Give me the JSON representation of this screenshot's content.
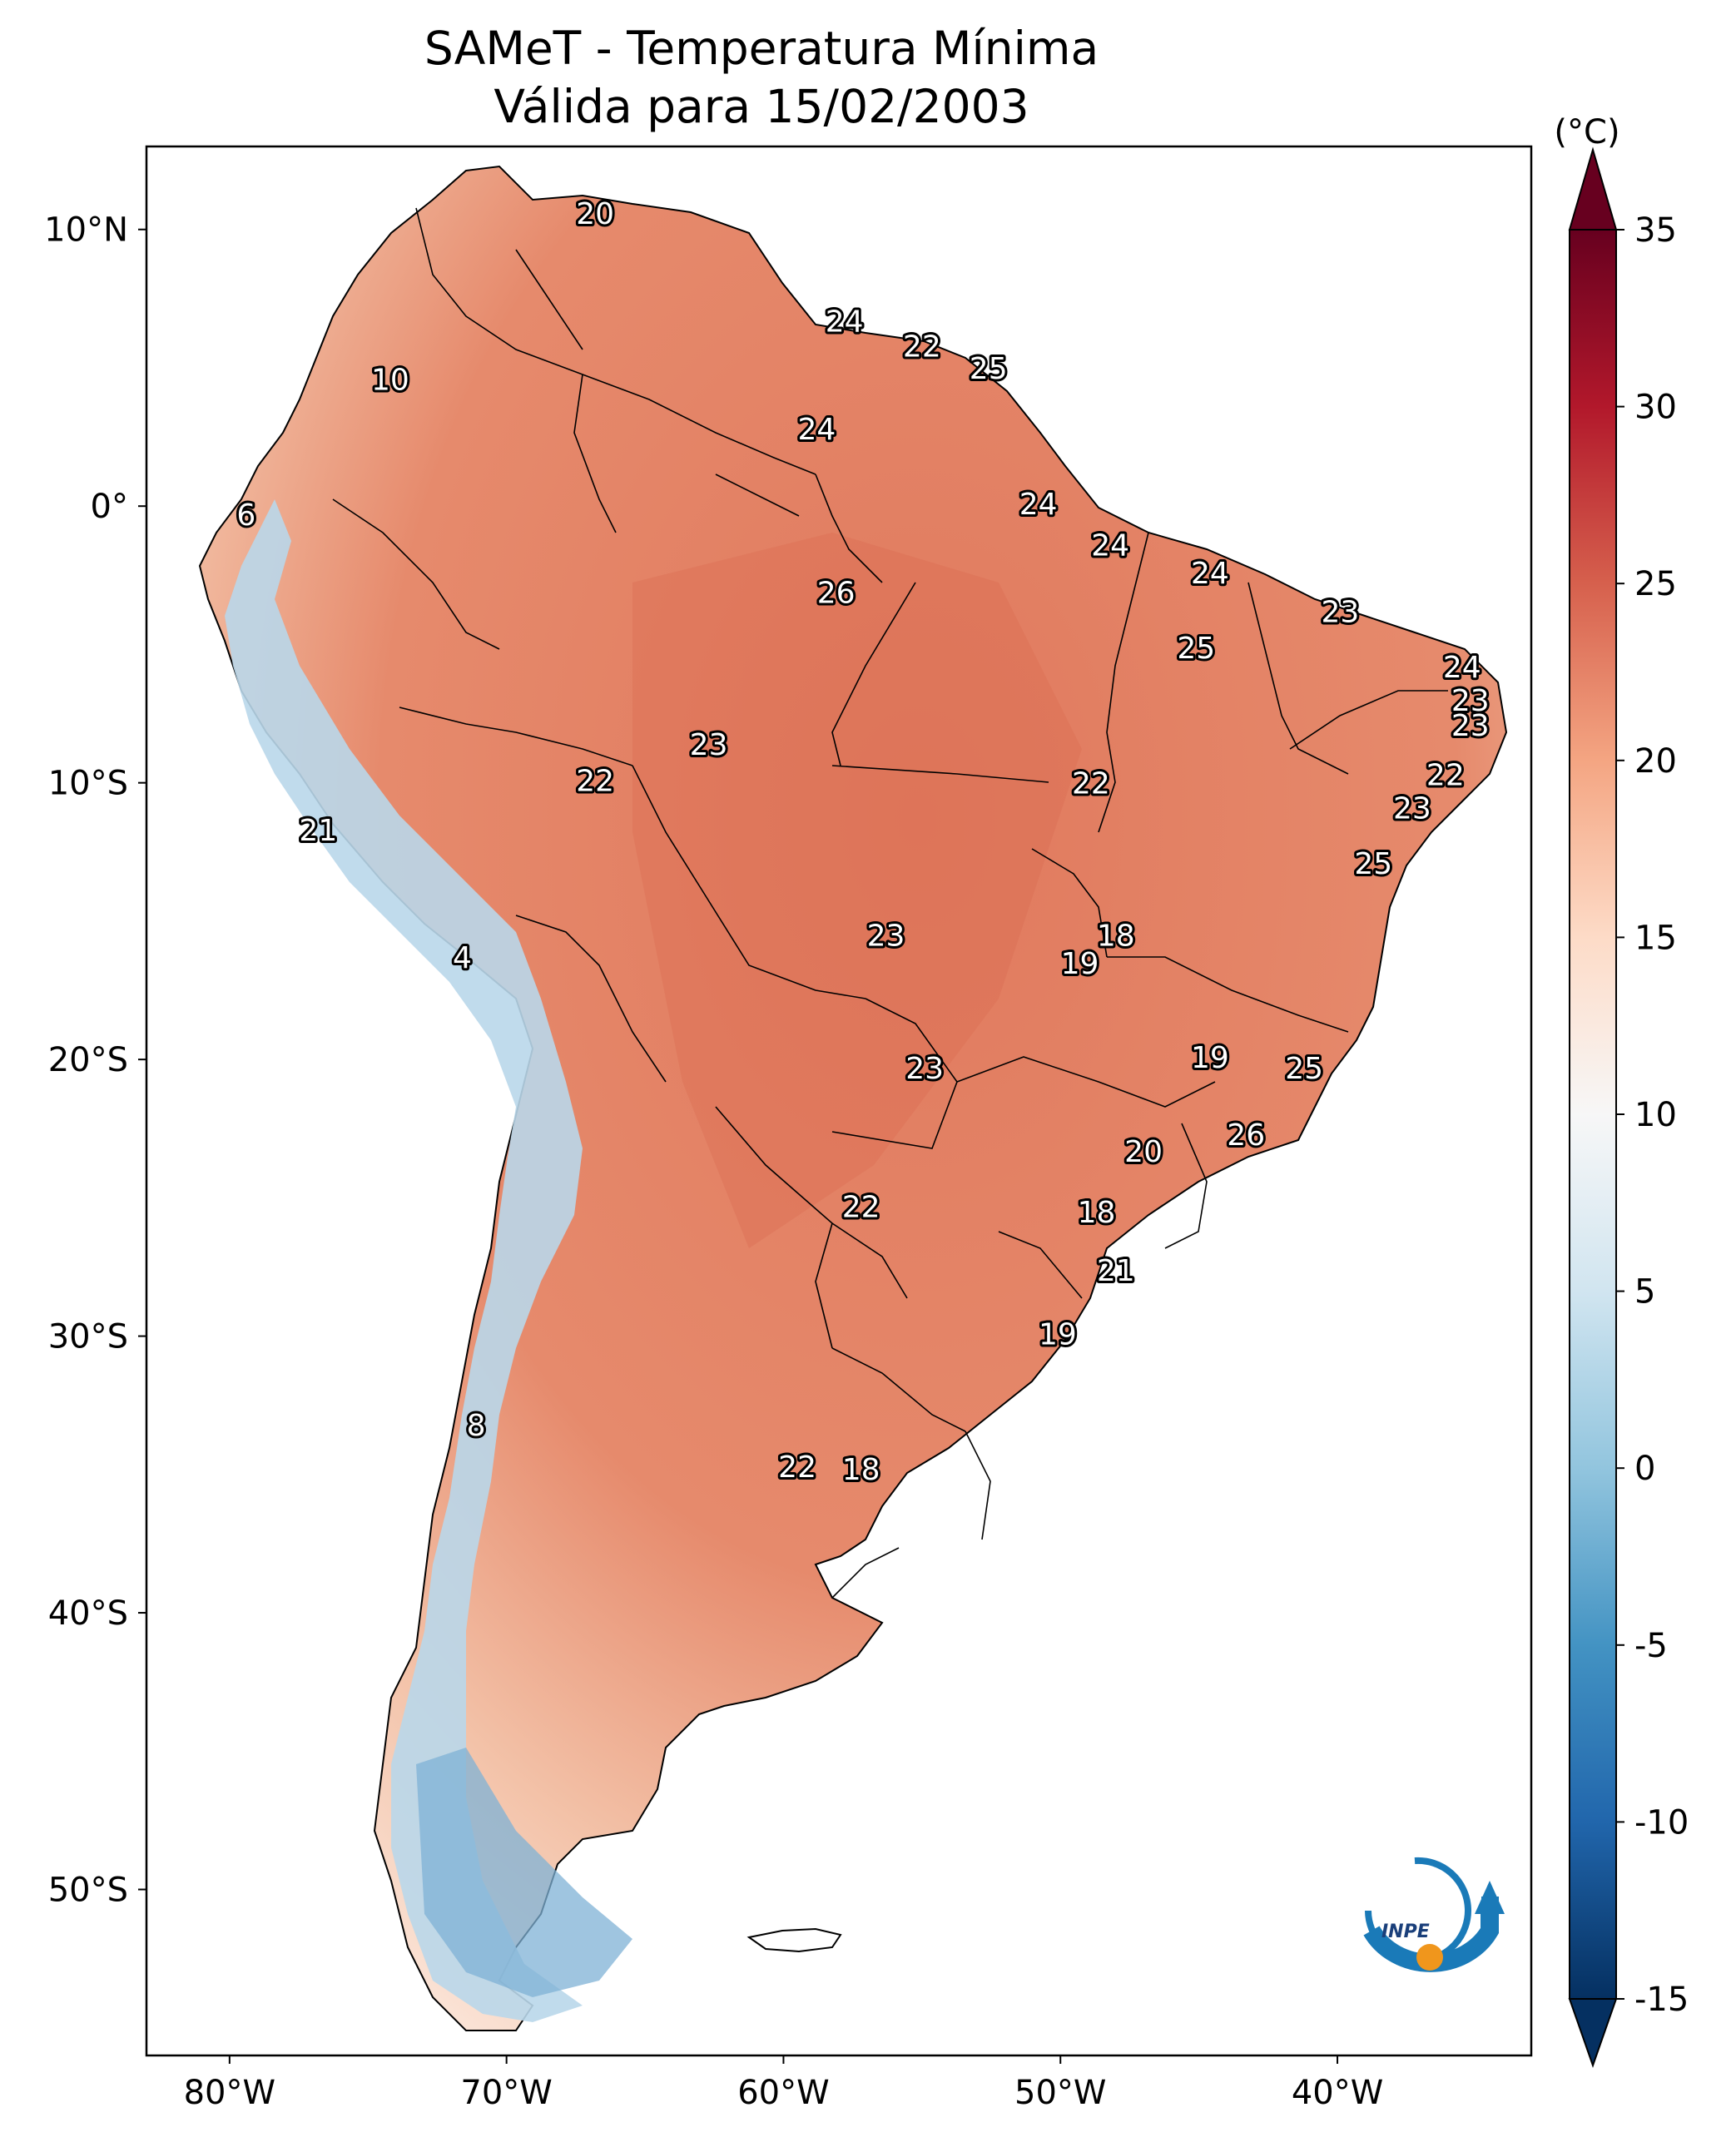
{
  "title": {
    "line1": "SAMeT - Temperatura Mínima",
    "line2": "Válida para 15/02/2003"
  },
  "map": {
    "lon_range": [
      -83,
      -33
    ],
    "lat_range": [
      -56,
      13
    ],
    "lat_ticks": [
      {
        "value": 10,
        "label": "10°N"
      },
      {
        "value": 0,
        "label": "0°"
      },
      {
        "value": -10,
        "label": "10°S"
      },
      {
        "value": -20,
        "label": "20°S"
      },
      {
        "value": -30,
        "label": "30°S"
      },
      {
        "value": -40,
        "label": "40°S"
      },
      {
        "value": -50,
        "label": "50°S"
      }
    ],
    "lon_ticks": [
      {
        "value": -80,
        "label": "80°W"
      },
      {
        "value": -70,
        "label": "70°W"
      },
      {
        "value": -60,
        "label": "60°W"
      },
      {
        "value": -50,
        "label": "50°W"
      },
      {
        "value": -40,
        "label": "40°W"
      }
    ],
    "point_values": [
      {
        "lon": -66.8,
        "lat": 10.6,
        "value": "20"
      },
      {
        "lon": -57.8,
        "lat": 6.7,
        "value": "24"
      },
      {
        "lon": -55.0,
        "lat": 5.8,
        "value": "22"
      },
      {
        "lon": -52.6,
        "lat": 5.0,
        "value": "25"
      },
      {
        "lon": -74.2,
        "lat": 4.6,
        "value": "10"
      },
      {
        "lon": -58.8,
        "lat": 2.8,
        "value": "24"
      },
      {
        "lon": -50.8,
        "lat": 0.1,
        "value": "24"
      },
      {
        "lon": -79.4,
        "lat": -0.3,
        "value": "6"
      },
      {
        "lon": -48.2,
        "lat": -1.4,
        "value": "24"
      },
      {
        "lon": -44.6,
        "lat": -2.4,
        "value": "24"
      },
      {
        "lon": -58.1,
        "lat": -3.1,
        "value": "26"
      },
      {
        "lon": -39.9,
        "lat": -3.8,
        "value": "23"
      },
      {
        "lon": -45.1,
        "lat": -5.1,
        "value": "25"
      },
      {
        "lon": -35.5,
        "lat": -5.8,
        "value": "24"
      },
      {
        "lon": -35.2,
        "lat": -7.0,
        "value": "23"
      },
      {
        "lon": -35.2,
        "lat": -7.9,
        "value": "23"
      },
      {
        "lon": -62.7,
        "lat": -8.6,
        "value": "23"
      },
      {
        "lon": -36.1,
        "lat": -9.7,
        "value": "22"
      },
      {
        "lon": -48.9,
        "lat": -10.0,
        "value": "22"
      },
      {
        "lon": -66.8,
        "lat": -9.9,
        "value": "22"
      },
      {
        "lon": -37.3,
        "lat": -10.9,
        "value": "23"
      },
      {
        "lon": -76.8,
        "lat": -11.7,
        "value": "21"
      },
      {
        "lon": -38.7,
        "lat": -12.9,
        "value": "25"
      },
      {
        "lon": -48.0,
        "lat": -15.5,
        "value": "18"
      },
      {
        "lon": -56.3,
        "lat": -15.5,
        "value": "23"
      },
      {
        "lon": -49.3,
        "lat": -16.5,
        "value": "19"
      },
      {
        "lon": -71.6,
        "lat": -16.3,
        "value": "4"
      },
      {
        "lon": -44.6,
        "lat": -19.9,
        "value": "19"
      },
      {
        "lon": -54.9,
        "lat": -20.3,
        "value": "23"
      },
      {
        "lon": -41.2,
        "lat": -20.3,
        "value": "25"
      },
      {
        "lon": -43.3,
        "lat": -22.7,
        "value": "26"
      },
      {
        "lon": -47.0,
        "lat": -23.3,
        "value": "20"
      },
      {
        "lon": -48.7,
        "lat": -25.5,
        "value": "18"
      },
      {
        "lon": -57.2,
        "lat": -25.3,
        "value": "22"
      },
      {
        "lon": -48.0,
        "lat": -27.6,
        "value": "21"
      },
      {
        "lon": -50.1,
        "lat": -29.9,
        "value": "19"
      },
      {
        "lon": -71.1,
        "lat": -33.2,
        "value": "8"
      },
      {
        "lon": -59.5,
        "lat": -34.7,
        "value": "22"
      },
      {
        "lon": -57.2,
        "lat": -34.8,
        "value": "18"
      }
    ]
  },
  "colorbar": {
    "unit": "(°C)",
    "range": [
      -15,
      35
    ],
    "ticks": [
      {
        "value": 35,
        "label": "35"
      },
      {
        "value": 30,
        "label": "30"
      },
      {
        "value": 25,
        "label": "25"
      },
      {
        "value": 20,
        "label": "20"
      },
      {
        "value": 15,
        "label": "15"
      },
      {
        "value": 10,
        "label": "10"
      },
      {
        "value": 5,
        "label": "5"
      },
      {
        "value": 0,
        "label": "0"
      },
      {
        "value": -5,
        "label": "-5"
      },
      {
        "value": -10,
        "label": "-10"
      },
      {
        "value": -15,
        "label": "-15"
      }
    ],
    "colors": [
      "#053061",
      "#2166ac",
      "#4393c3",
      "#92c5de",
      "#d1e5f0",
      "#f7f7f7",
      "#fddbc7",
      "#f4a582",
      "#d6604d",
      "#b2182b",
      "#67001f"
    ]
  },
  "logo": {
    "text": "INPE"
  }
}
